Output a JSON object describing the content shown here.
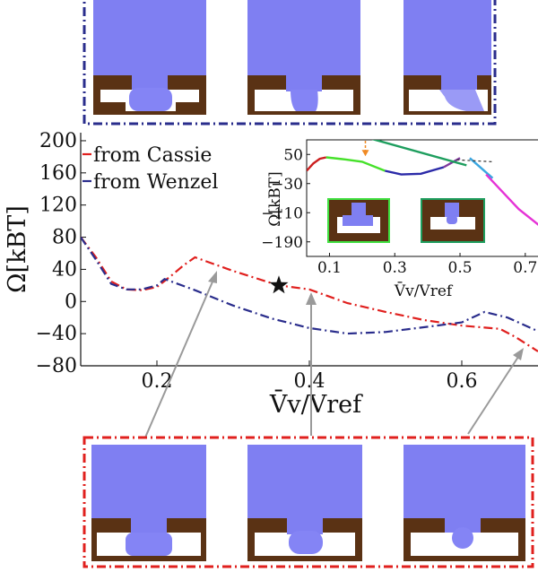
{
  "colors": {
    "cassie": "#e0201e",
    "wenzel": "#2a2d8c",
    "frame_blue": "#2a2d8c",
    "frame_red": "#e0201e",
    "liquid": "#7f7ff2",
    "substrate": "#5a3214",
    "arrow": "#9a9a9a",
    "star": "#111111"
  },
  "chart_data": [
    {
      "type": "line",
      "xlabel": "V̄v/Vref",
      "ylabel": "Ω[kBT]",
      "xlim": [
        0.1,
        0.7
      ],
      "ylim": [
        -80,
        210
      ],
      "xticks": [
        0.2,
        0.4,
        0.6
      ],
      "xtick_labels": [
        "0.2",
        "0.4",
        "0.6"
      ],
      "yticks": [
        200,
        160,
        120,
        80,
        40,
        0,
        -40,
        -80
      ],
      "ytick_labels": [
        "200",
        "160",
        "120",
        "80",
        "40",
        "0",
        "−40",
        "−80"
      ],
      "grid": false,
      "legend_position": "top-left",
      "series": [
        {
          "name": "from Cassie",
          "style": "dash-dot",
          "x": [
            0.1,
            0.12,
            0.14,
            0.16,
            0.18,
            0.2,
            0.22,
            0.235,
            0.25,
            0.3,
            0.35,
            0.36,
            0.4,
            0.45,
            0.5,
            0.55,
            0.6,
            0.65,
            0.67,
            0.7
          ],
          "y": [
            80,
            55,
            25,
            15,
            14,
            18,
            33,
            45,
            55,
            38,
            23,
            20,
            15,
            -2,
            -13,
            -23,
            -30,
            -34,
            -44,
            -62
          ]
        },
        {
          "name": "from Wenzel",
          "style": "dash-dot",
          "x": [
            0.1,
            0.12,
            0.14,
            0.16,
            0.18,
            0.2,
            0.21,
            0.25,
            0.3,
            0.35,
            0.4,
            0.45,
            0.5,
            0.55,
            0.6,
            0.63,
            0.66,
            0.7
          ],
          "y": [
            80,
            52,
            22,
            15,
            15,
            20,
            28,
            14,
            -5,
            -21,
            -33,
            -40,
            -38,
            -32,
            -26,
            -13,
            -20,
            -37
          ]
        }
      ],
      "annotations": [
        {
          "marker": "star",
          "x": 0.36,
          "y": 20
        }
      ]
    },
    {
      "type": "line",
      "position": "inset-top-right",
      "xlabel": "V̄v/Vref",
      "ylabel": "Ω[kBT]",
      "xlim": [
        0.03,
        0.75
      ],
      "ylim": [
        -230,
        90
      ],
      "xticks": [
        0.1,
        0.3,
        0.5,
        0.7
      ],
      "xtick_labels": [
        "0.1",
        "0.3",
        "0.5",
        "0.7"
      ],
      "yticks": [
        50,
        -30,
        -110,
        -190
      ],
      "ytick_labels": [
        "50",
        "−30",
        "−110",
        "−190"
      ],
      "series": [
        {
          "color": "#cc1f1f",
          "x": [
            0.03,
            0.05,
            0.07,
            0.09
          ],
          "y": [
            5,
            25,
            38,
            42
          ]
        },
        {
          "color": "#46e12a",
          "x": [
            0.09,
            0.15,
            0.2,
            0.27
          ],
          "y": [
            42,
            36,
            30,
            5
          ]
        },
        {
          "color": "#2b2aa8",
          "x": [
            0.27,
            0.32,
            0.38,
            0.45
          ],
          "y": [
            5,
            -5,
            -3,
            15
          ]
        },
        {
          "color": "#7f3a9c",
          "x": [
            0.45,
            0.5
          ],
          "y": [
            15,
            40
          ]
        },
        {
          "color": "#1e9e5e",
          "x": [
            0.12,
            0.52
          ],
          "y": [
            120,
            20
          ]
        },
        {
          "color": "#3aa6e0",
          "x": [
            0.53,
            0.6
          ],
          "y": [
            40,
            -15
          ]
        },
        {
          "color": "#e533d6",
          "x": [
            0.58,
            0.68,
            0.75
          ],
          "y": [
            -5,
            -100,
            -150
          ]
        },
        {
          "color": "#333333",
          "style": "dashed",
          "x": [
            0.49,
            0.6
          ],
          "y": [
            35,
            30
          ]
        }
      ],
      "annotations": [
        {
          "type": "arrow",
          "color": "#f08a24",
          "x": 0.21,
          "y_from": 100,
          "y_to": 45
        }
      ]
    }
  ]
}
